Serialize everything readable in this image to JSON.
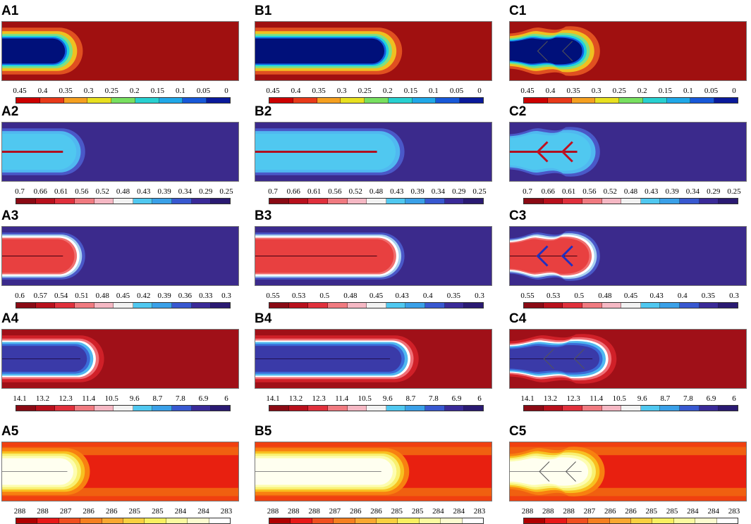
{
  "panels": [
    {
      "label": "A1",
      "row": 1,
      "col": "A",
      "field": "concentration",
      "extent": 0.27,
      "bulge": false,
      "fissures": 0,
      "core_line": false,
      "ticks": [
        "0.45",
        "0.4",
        "0.35",
        "0.3",
        "0.25",
        "0.2",
        "0.15",
        "0.1",
        "0.05",
        "0"
      ],
      "bar": "jet"
    },
    {
      "label": "B1",
      "row": 1,
      "col": "B",
      "field": "concentration",
      "extent": 0.55,
      "bulge": false,
      "fissures": 0,
      "core_line": false,
      "ticks": [
        "0.45",
        "0.4",
        "0.35",
        "0.3",
        "0.25",
        "0.2",
        "0.15",
        "0.1",
        "0.05",
        "0"
      ],
      "bar": "jet"
    },
    {
      "label": "C1",
      "row": 1,
      "col": "C",
      "field": "concentration",
      "extent": 0.31,
      "bulge": true,
      "fissures": 2,
      "core_line": false,
      "ticks": [
        "0.45",
        "0.4",
        "0.35",
        "0.3",
        "0.25",
        "0.2",
        "0.15",
        "0.1",
        "0.05",
        "0"
      ],
      "bar": "jet"
    },
    {
      "label": "A2",
      "row": 2,
      "col": "A",
      "field": "porosity",
      "extent": 0.28,
      "bulge": false,
      "fissures": 0,
      "core_line": true,
      "ticks": [
        "0.7",
        "0.66",
        "0.61",
        "0.56",
        "0.52",
        "0.48",
        "0.43",
        "0.39",
        "0.34",
        "0.29",
        "0.25"
      ],
      "bar": "diverging"
    },
    {
      "label": "B2",
      "row": 2,
      "col": "B",
      "field": "porosity",
      "extent": 0.56,
      "bulge": false,
      "fissures": 0,
      "core_line": true,
      "ticks": [
        "0.7",
        "0.66",
        "0.61",
        "0.56",
        "0.52",
        "0.48",
        "0.43",
        "0.39",
        "0.34",
        "0.29",
        "0.25"
      ],
      "bar": "diverging"
    },
    {
      "label": "C2",
      "row": 2,
      "col": "C",
      "field": "porosity",
      "extent": 0.31,
      "bulge": true,
      "fissures": 2,
      "core_line": true,
      "ticks": [
        "0.7",
        "0.66",
        "0.61",
        "0.56",
        "0.52",
        "0.48",
        "0.43",
        "0.39",
        "0.34",
        "0.29",
        "0.25"
      ],
      "bar": "diverging"
    },
    {
      "label": "A3",
      "row": 3,
      "col": "A",
      "field": "saturation",
      "extent": 0.28,
      "bulge": false,
      "fissures": 0,
      "core_line": true,
      "ticks": [
        "0.6",
        "0.57",
        "0.54",
        "0.51",
        "0.48",
        "0.45",
        "0.42",
        "0.39",
        "0.36",
        "0.33",
        "0.3"
      ],
      "bar": "diverging"
    },
    {
      "label": "B3",
      "row": 3,
      "col": "B",
      "field": "saturation",
      "extent": 0.56,
      "bulge": false,
      "fissures": 0,
      "core_line": true,
      "ticks": [
        "0.55",
        "0.53",
        "0.5",
        "0.48",
        "0.45",
        "0.43",
        "0.4",
        "0.35",
        "0.3"
      ],
      "bar": "diverging"
    },
    {
      "label": "C3",
      "row": 3,
      "col": "C",
      "field": "saturation",
      "extent": 0.31,
      "bulge": true,
      "fissures": 2,
      "core_line": true,
      "ticks": [
        "0.55",
        "0.53",
        "0.5",
        "0.48",
        "0.45",
        "0.43",
        "0.4",
        "0.35",
        "0.3"
      ],
      "bar": "diverging"
    },
    {
      "label": "A4",
      "row": 4,
      "col": "A",
      "field": "pressure",
      "extent": 0.36,
      "bulge": false,
      "fissures": 0,
      "core_line": true,
      "ticks": [
        "14.1",
        "13.2",
        "12.3",
        "11.4",
        "10.5",
        "9.6",
        "8.7",
        "7.8",
        "6.9",
        "6"
      ],
      "bar": "diverging"
    },
    {
      "label": "B4",
      "row": 4,
      "col": "B",
      "field": "pressure",
      "extent": 0.62,
      "bulge": false,
      "fissures": 0,
      "core_line": true,
      "ticks": [
        "14.1",
        "13.2",
        "12.3",
        "11.4",
        "10.5",
        "9.6",
        "8.7",
        "7.8",
        "6.9",
        "6"
      ],
      "bar": "diverging"
    },
    {
      "label": "C4",
      "row": 4,
      "col": "C",
      "field": "pressure",
      "extent": 0.38,
      "bulge": true,
      "fissures": 2,
      "core_line": true,
      "ticks": [
        "14.1",
        "13.2",
        "12.3",
        "11.4",
        "10.5",
        "9.6",
        "8.7",
        "7.8",
        "6.9",
        "6"
      ],
      "bar": "diverging"
    },
    {
      "label": "A5",
      "row": 5,
      "col": "A",
      "field": "temperature",
      "extent": 0.3,
      "bulge": false,
      "fissures": 0,
      "core_line": true,
      "ticks": [
        "288",
        "288",
        "287",
        "286",
        "286",
        "285",
        "285",
        "284",
        "284",
        "283"
      ],
      "bar": "heat"
    },
    {
      "label": "B5",
      "row": 5,
      "col": "B",
      "field": "temperature",
      "extent": 0.58,
      "bulge": false,
      "fissures": 0,
      "core_line": true,
      "ticks": [
        "288",
        "288",
        "288",
        "287",
        "286",
        "286",
        "285",
        "285",
        "284",
        "284",
        "283"
      ],
      "bar": "heat"
    },
    {
      "label": "C5",
      "row": 5,
      "col": "C",
      "field": "temperature",
      "extent": 0.33,
      "bulge": true,
      "fissures": 2,
      "core_line": true,
      "ticks": [
        "288",
        "288",
        "288",
        "287",
        "286",
        "286",
        "285",
        "285",
        "284",
        "284",
        "283"
      ],
      "bar": "heat"
    }
  ],
  "palettes": {
    "jet": [
      "#cc0000",
      "#e83a1a",
      "#f5a020",
      "#e8e020",
      "#78e060",
      "#28d0d0",
      "#20a8e8",
      "#1858d8",
      "#0a1a9a"
    ],
    "diverging": [
      "#8a0a14",
      "#b8101c",
      "#e0303c",
      "#f07a80",
      "#f5b8c4",
      "#f2f2f2",
      "#50c8f0",
      "#3aa0e8",
      "#3858d0",
      "#3a2a98",
      "#2a1a72"
    ],
    "heat": [
      "#b00000",
      "#e81818",
      "#f05020",
      "#f58020",
      "#f8a830",
      "#f8d040",
      "#f8f060",
      "#fafaa0",
      "#fcfcd0",
      "#ffffff"
    ]
  }
}
